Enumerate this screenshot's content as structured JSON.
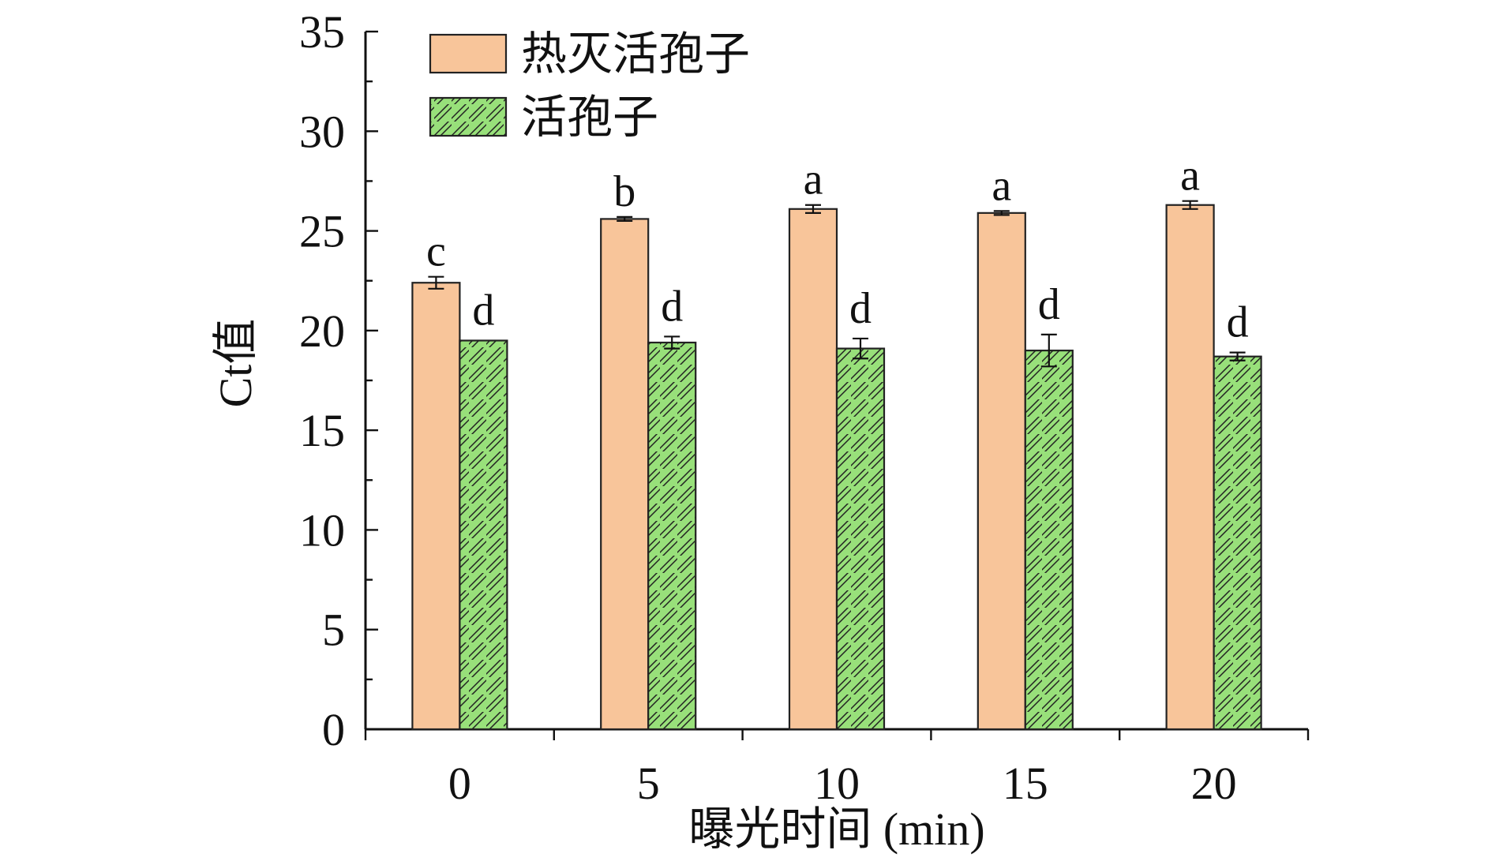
{
  "chart_data": {
    "type": "bar",
    "title": "",
    "xlabel": "曝光时间 (min)",
    "ylabel": "Ct值",
    "categories": [
      "0",
      "5",
      "10",
      "15",
      "20"
    ],
    "ylim": [
      0,
      35
    ],
    "yticks": [
      0,
      5,
      10,
      15,
      20,
      25,
      30,
      35
    ],
    "grid": false,
    "legend": {
      "position": "top-left"
    },
    "series": [
      {
        "name": "热灭活孢子",
        "color": "#F8C59A",
        "pattern": "solid",
        "values": [
          22.4,
          25.6,
          26.1,
          25.9,
          26.3
        ],
        "error": [
          0.3,
          0.1,
          0.2,
          0.1,
          0.2
        ],
        "labels": [
          "c",
          "b",
          "a",
          "a",
          "a"
        ]
      },
      {
        "name": "活孢子",
        "color": "#98E07A",
        "pattern": "hatched",
        "values": [
          19.5,
          19.4,
          19.1,
          19.0,
          18.7
        ],
        "error": [
          0.0,
          0.3,
          0.5,
          0.8,
          0.2
        ],
        "labels": [
          "d",
          "d",
          "d",
          "d",
          "d"
        ]
      }
    ]
  }
}
